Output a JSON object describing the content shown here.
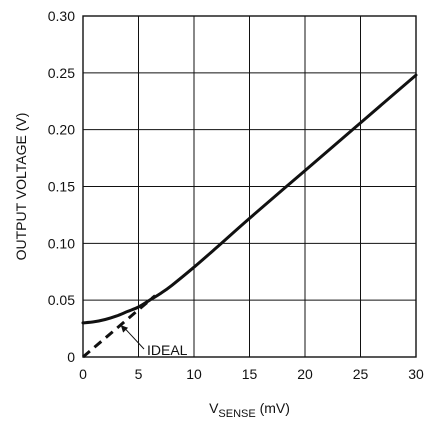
{
  "chart_data": {
    "type": "line",
    "title": "",
    "xlabel": {
      "main": "V",
      "sub": "SENSE",
      "unit": " (mV)"
    },
    "ylabel": "OUTPUT VOLTAGE (V)",
    "xlim": [
      0,
      30
    ],
    "ylim": [
      0,
      0.3
    ],
    "x_ticks": [
      0,
      5,
      10,
      15,
      20,
      25,
      30
    ],
    "x_tick_labels": [
      "0",
      "5",
      "10",
      "15",
      "20",
      "25",
      "30"
    ],
    "y_ticks": [
      0,
      0.05,
      0.1,
      0.15,
      0.2,
      0.25,
      0.3
    ],
    "y_tick_labels": [
      "0",
      "0.05",
      "0.10",
      "0.15",
      "0.20",
      "0.25",
      "0.30"
    ],
    "grid": true,
    "series": [
      {
        "style": "solid",
        "x": [
          0,
          1,
          2,
          3,
          4,
          5,
          6,
          7,
          8,
          10,
          12,
          15,
          20,
          25,
          30
        ],
        "y": [
          0.03,
          0.031,
          0.033,
          0.036,
          0.04,
          0.044,
          0.05,
          0.056,
          0.063,
          0.079,
          0.096,
          0.122,
          0.164,
          0.206,
          0.248
        ]
      },
      {
        "name": "IDEAL",
        "style": "dashed",
        "x": [
          0,
          6.5
        ],
        "y": [
          0,
          0.054
        ]
      }
    ],
    "annotations": [
      {
        "text": "IDEAL",
        "points_to": {
          "x": 3.4,
          "y": 0.028
        }
      }
    ]
  }
}
